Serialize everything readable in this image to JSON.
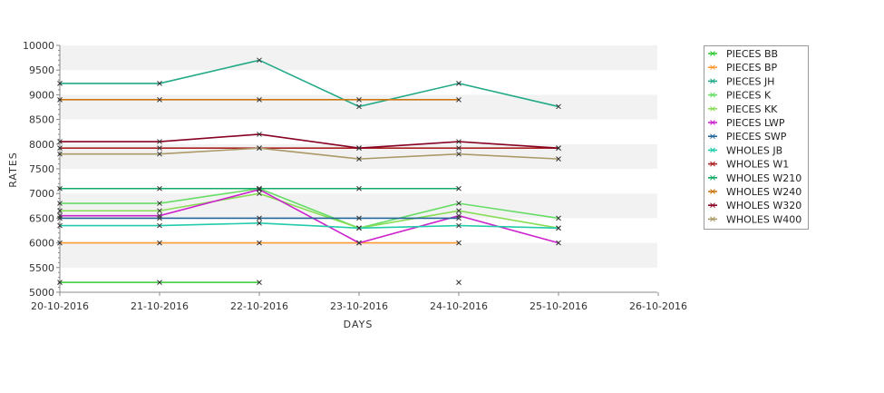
{
  "chart_data": {
    "type": "line",
    "title": "",
    "xlabel": "DAYS",
    "ylabel": "RATES",
    "x": [
      "20-10-2016",
      "21-10-2016",
      "22-10-2016",
      "23-10-2016",
      "24-10-2016",
      "25-10-2016",
      "26-10-2016"
    ],
    "ylim": [
      5000,
      10000
    ],
    "yticks": [
      5000,
      5500,
      6000,
      6500,
      7000,
      7500,
      8000,
      8500,
      9000,
      9500,
      10000
    ],
    "grid": "alternating horizontal bands",
    "legend_position": "right",
    "series": [
      {
        "name": "PIECES BB",
        "color": "#33cc33",
        "values": [
          5200,
          5200,
          5200,
          null,
          5200,
          null,
          null
        ]
      },
      {
        "name": "PIECES BP",
        "color": "#ff9933",
        "values": [
          6000,
          6000,
          6000,
          6000,
          6000,
          null,
          null
        ]
      },
      {
        "name": "PIECES JH",
        "color": "#22aa88",
        "values": [
          9230,
          9230,
          9700,
          8760,
          9230,
          8760,
          null
        ]
      },
      {
        "name": "PIECES K",
        "color": "#66dd66",
        "values": [
          6800,
          6800,
          7100,
          6300,
          6800,
          6500,
          null
        ]
      },
      {
        "name": "PIECES KK",
        "color": "#88dd55",
        "values": [
          6650,
          6650,
          7000,
          6300,
          6650,
          6300,
          null
        ]
      },
      {
        "name": "PIECES LWP",
        "color": "#cc22cc",
        "values": [
          6550,
          6550,
          7080,
          6000,
          6550,
          6000,
          null
        ]
      },
      {
        "name": "PIECES SWP",
        "color": "#226699",
        "values": [
          6500,
          6500,
          6500,
          6500,
          6500,
          null,
          null
        ]
      },
      {
        "name": "WHOLES JB",
        "color": "#22ccaa",
        "values": [
          6350,
          6350,
          6400,
          6300,
          6350,
          6300,
          null
        ]
      },
      {
        "name": "WHOLES W1",
        "color": "#aa2222",
        "values": [
          7920,
          7920,
          7920,
          7920,
          7920,
          7920,
          null
        ]
      },
      {
        "name": "WHOLES W210",
        "color": "#11aa66",
        "values": [
          7100,
          7100,
          7100,
          7100,
          7100,
          null,
          null
        ]
      },
      {
        "name": "WHOLES W240",
        "color": "#cc7711",
        "values": [
          8900,
          8900,
          8900,
          8900,
          8900,
          null,
          null
        ]
      },
      {
        "name": "WHOLES W320",
        "color": "#880022",
        "values": [
          8050,
          8050,
          8200,
          7920,
          8050,
          7920,
          null
        ]
      },
      {
        "name": "WHOLES W400",
        "color": "#aa9966",
        "values": [
          7800,
          7800,
          7920,
          7700,
          7800,
          7700,
          null
        ]
      }
    ]
  }
}
